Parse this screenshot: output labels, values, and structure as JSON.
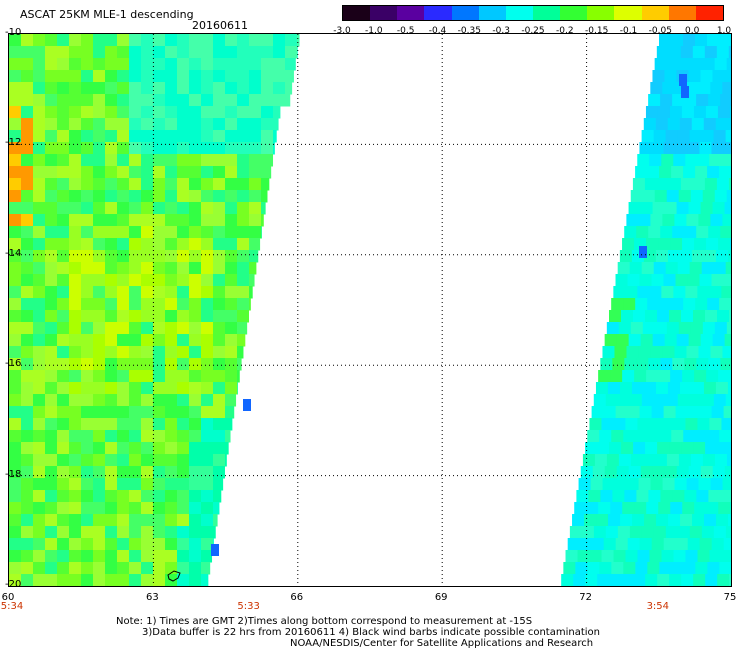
{
  "header": {
    "title": "ASCAT 25KM MLE-1 descending",
    "date": "20160611"
  },
  "colorbar": {
    "colors": [
      "#1a0018",
      "#3a0066",
      "#5a00a0",
      "#2a2aff",
      "#0077ff",
      "#00c8ff",
      "#00ffee",
      "#00ff99",
      "#33ff33",
      "#88ff00",
      "#ddff00",
      "#ffcc00",
      "#ff7700",
      "#ff2200"
    ],
    "labels": [
      "-3.0",
      "-1.0",
      "-0.5",
      "-0.4",
      "-0.35",
      "-0.3",
      "-0.25",
      "-0.2",
      "-0.15",
      "-0.1",
      "-0.05",
      "0.0",
      "1.0"
    ]
  },
  "map": {
    "lon_ticks": [
      "60",
      "63",
      "66",
      "69",
      "72",
      "75"
    ],
    "lat_ticks": [
      "-10",
      "-12",
      "-14",
      "-16",
      "-18",
      "-20"
    ],
    "lon_range": [
      60,
      75
    ],
    "lat_range": [
      -20,
      -10
    ],
    "gridlines": "dotted",
    "swath_times": [
      {
        "lon": 60,
        "time": "5:34"
      },
      {
        "lon": 65,
        "time": "5:33"
      },
      {
        "lon": 73.5,
        "time": "3:54"
      }
    ]
  },
  "notes": {
    "line1": "Note: 1) Times are GMT 2)Times along bottom correspond to measurement at -15S",
    "line2": "3)Data buffer is 22 hrs from 20160611 4) Black wind barbs indicate possible contamination",
    "line3": "NOAA/NESDIS/Center for Satellite Applications and Research"
  }
}
